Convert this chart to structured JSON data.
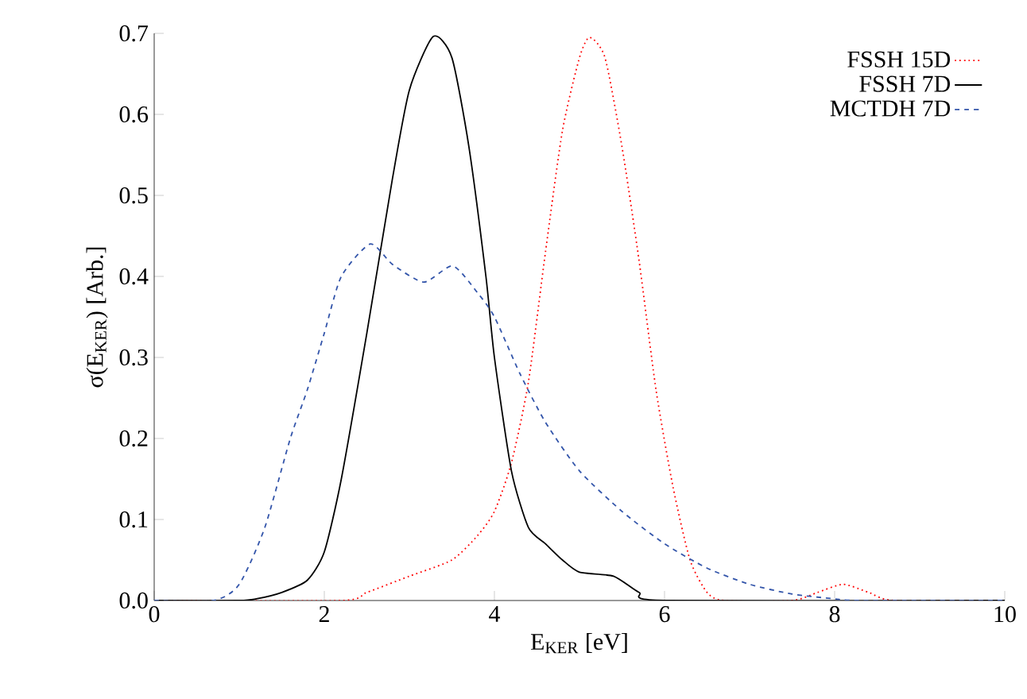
{
  "chart_data": {
    "type": "line",
    "xlabel": "E$_{KER}$ [eV]",
    "ylabel": "σ(E$_{KER}$) [Arb.]",
    "xlim": [
      0,
      10
    ],
    "ylim": [
      0,
      0.7
    ],
    "xticks": [
      0,
      2,
      4,
      6,
      8,
      10
    ],
    "yticks": [
      {
        "value": 0,
        "label": "0.0"
      },
      {
        "value": 0.1,
        "label": "0.1"
      },
      {
        "value": 0.2,
        "label": "0.2"
      },
      {
        "value": 0.3,
        "label": "0.3"
      },
      {
        "value": 0.4,
        "label": "0.4"
      },
      {
        "value": 0.5,
        "label": "0.5"
      },
      {
        "value": 0.6,
        "label": "0.6"
      },
      {
        "value": 0.7,
        "label": "0.7"
      }
    ],
    "grid": false,
    "legend": "top right",
    "marker": "none",
    "series": [
      {
        "name": "FSSH 15D",
        "color": "#ff0000",
        "line_style": "dotted",
        "x": [
          0,
          2.2,
          2.5,
          3.0,
          3.5,
          3.8,
          4.0,
          4.2,
          4.4,
          4.6,
          4.8,
          5.0,
          5.12,
          5.3,
          5.5,
          5.7,
          5.9,
          6.1,
          6.3,
          6.5,
          6.7,
          7.5,
          7.8,
          8.1,
          8.4,
          8.7,
          10
        ],
        "values": [
          0,
          0,
          0.01,
          0.03,
          0.05,
          0.08,
          0.11,
          0.17,
          0.27,
          0.43,
          0.58,
          0.67,
          0.695,
          0.67,
          0.56,
          0.42,
          0.26,
          0.14,
          0.05,
          0.01,
          0,
          0,
          0.01,
          0.02,
          0.01,
          0,
          0
        ]
      },
      {
        "name": "FSSH  7D",
        "color": "#000000",
        "line_style": "solid",
        "x": [
          0,
          1.0,
          1.2,
          1.5,
          1.8,
          2.0,
          2.2,
          2.5,
          2.8,
          3.0,
          3.28,
          3.5,
          3.7,
          3.9,
          4.0,
          4.2,
          4.4,
          4.6,
          4.8,
          5.0,
          5.4,
          5.7,
          6.0,
          10
        ],
        "values": [
          0,
          0,
          0.002,
          0.01,
          0.025,
          0.06,
          0.15,
          0.33,
          0.52,
          0.63,
          0.696,
          0.67,
          0.56,
          0.4,
          0.3,
          0.16,
          0.09,
          0.07,
          0.05,
          0.035,
          0.03,
          0.01,
          0,
          0
        ]
      },
      {
        "name": "MCTDH 7D",
        "color": "#3355aa",
        "line_style": "dashed",
        "x": [
          0,
          0.7,
          1.0,
          1.3,
          1.6,
          1.8,
          2.0,
          2.2,
          2.54,
          2.8,
          3.17,
          3.51,
          3.8,
          4.0,
          4.3,
          4.6,
          5.0,
          5.5,
          6.0,
          6.5,
          7.0,
          7.5,
          8.0,
          8.3,
          10
        ],
        "values": [
          0,
          0,
          0.02,
          0.09,
          0.2,
          0.26,
          0.33,
          0.4,
          0.44,
          0.415,
          0.393,
          0.413,
          0.38,
          0.35,
          0.28,
          0.22,
          0.16,
          0.11,
          0.07,
          0.04,
          0.02,
          0.008,
          0.002,
          0,
          0
        ]
      }
    ]
  }
}
